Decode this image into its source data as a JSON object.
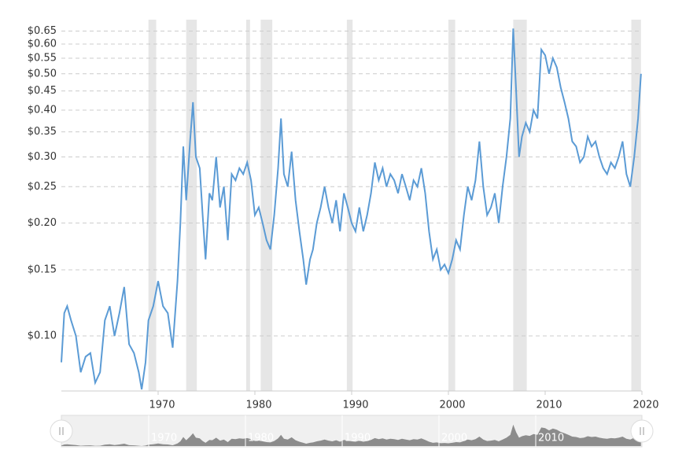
{
  "chart_data": {
    "type": "line",
    "x": [
      1960.0,
      1960.3,
      1960.6,
      1961,
      1961.5,
      1962,
      1962.5,
      1963,
      1963.5,
      1964,
      1964.5,
      1965,
      1965.5,
      1966,
      1966.5,
      1967,
      1967.5,
      1968,
      1968.3,
      1968.7,
      1969,
      1969.5,
      1970,
      1970.5,
      1971,
      1971.5,
      1972,
      1972.3,
      1972.6,
      1972.9,
      1973.3,
      1973.6,
      1973.9,
      1974.3,
      1974.6,
      1974.9,
      1975.3,
      1975.6,
      1976,
      1976.4,
      1976.8,
      1977.2,
      1977.6,
      1978,
      1978.4,
      1978.8,
      1979.2,
      1979.6,
      1980,
      1980.4,
      1980.8,
      1981.2,
      1981.6,
      1982,
      1982.4,
      1982.7,
      1983,
      1983.4,
      1983.8,
      1984.2,
      1984.6,
      1985,
      1985.3,
      1985.7,
      1986,
      1986.4,
      1986.8,
      1987.2,
      1987.6,
      1988,
      1988.4,
      1988.8,
      1989.2,
      1989.6,
      1990,
      1990.4,
      1990.8,
      1991.2,
      1991.6,
      1992,
      1992.4,
      1992.8,
      1993.2,
      1993.6,
      1994,
      1994.4,
      1994.8,
      1995.2,
      1995.6,
      1996,
      1996.4,
      1996.8,
      1997.2,
      1997.6,
      1998,
      1998.4,
      1998.8,
      1999.2,
      1999.6,
      2000,
      2000.4,
      2000.8,
      2001.2,
      2001.6,
      2002,
      2002.4,
      2002.8,
      2003.2,
      2003.6,
      2004,
      2004.4,
      2004.8,
      2005.2,
      2005.6,
      2006,
      2006.4,
      2006.7,
      2007,
      2007.3,
      2007.6,
      2008,
      2008.4,
      2008.8,
      2009.2,
      2009.6,
      2010,
      2010.4,
      2010.8,
      2011.2,
      2011.6,
      2012,
      2012.4,
      2012.8,
      2013.2,
      2013.6,
      2014,
      2014.4,
      2014.8,
      2015.2,
      2015.6,
      2016,
      2016.4,
      2016.8,
      2017.2,
      2017.6,
      2018,
      2018.4,
      2018.8,
      2019.2,
      2019.6,
      2019.9
    ],
    "series": [
      {
        "color": "#5b9bd5",
        "values": [
          0.085,
          0.115,
          0.12,
          0.11,
          0.1,
          0.08,
          0.088,
          0.09,
          0.075,
          0.08,
          0.11,
          0.12,
          0.1,
          0.115,
          0.135,
          0.095,
          0.09,
          0.08,
          0.072,
          0.085,
          0.11,
          0.12,
          0.14,
          0.12,
          0.115,
          0.093,
          0.14,
          0.2,
          0.32,
          0.23,
          0.33,
          0.42,
          0.3,
          0.28,
          0.21,
          0.16,
          0.24,
          0.23,
          0.3,
          0.22,
          0.25,
          0.18,
          0.27,
          0.26,
          0.28,
          0.27,
          0.29,
          0.26,
          0.21,
          0.22,
          0.2,
          0.18,
          0.17,
          0.21,
          0.28,
          0.38,
          0.27,
          0.25,
          0.31,
          0.23,
          0.19,
          0.16,
          0.137,
          0.16,
          0.17,
          0.2,
          0.22,
          0.25,
          0.22,
          0.2,
          0.23,
          0.19,
          0.24,
          0.22,
          0.2,
          0.19,
          0.22,
          0.19,
          0.21,
          0.24,
          0.29,
          0.26,
          0.28,
          0.25,
          0.27,
          0.26,
          0.24,
          0.27,
          0.25,
          0.23,
          0.26,
          0.25,
          0.28,
          0.24,
          0.19,
          0.16,
          0.17,
          0.15,
          0.155,
          0.147,
          0.16,
          0.18,
          0.17,
          0.21,
          0.25,
          0.23,
          0.26,
          0.33,
          0.25,
          0.21,
          0.22,
          0.24,
          0.2,
          0.25,
          0.3,
          0.38,
          0.66,
          0.45,
          0.3,
          0.34,
          0.37,
          0.35,
          0.4,
          0.38,
          0.58,
          0.56,
          0.5,
          0.55,
          0.52,
          0.46,
          0.42,
          0.38,
          0.33,
          0.32,
          0.29,
          0.3,
          0.34,
          0.32,
          0.33,
          0.3,
          0.28,
          0.27,
          0.29,
          0.28,
          0.3,
          0.33,
          0.27,
          0.25,
          0.3,
          0.38,
          0.5
        ]
      }
    ],
    "shaded": [
      [
        1969.0,
        1969.8
      ],
      [
        1972.9,
        1974.0
      ],
      [
        1979.1,
        1979.5
      ],
      [
        1980.6,
        1981.8
      ],
      [
        1989.5,
        1990.1
      ],
      [
        2000.0,
        2000.7
      ],
      [
        2006.7,
        2008.1
      ],
      [
        2018.9,
        2019.9
      ]
    ],
    "xlim": [
      1960,
      2020
    ],
    "xticks": [
      1970,
      1980,
      1990,
      2000,
      2010,
      2020
    ],
    "ylim": [
      0.0713,
      0.697
    ],
    "log_y": true,
    "grid": true,
    "yticks": [
      {
        "value": 0.1,
        "label": "$0.10"
      },
      {
        "value": 0.15,
        "label": "$0.15"
      },
      {
        "value": 0.2,
        "label": "$0.20"
      },
      {
        "value": 0.25,
        "label": "$0.25"
      },
      {
        "value": 0.3,
        "label": "$0.30"
      },
      {
        "value": 0.35,
        "label": "$0.35"
      },
      {
        "value": 0.4,
        "label": "$0.40"
      },
      {
        "value": 0.45,
        "label": "$0.45"
      },
      {
        "value": 0.5,
        "label": "$0.50"
      },
      {
        "value": 0.55,
        "label": "$0.55"
      },
      {
        "value": 0.6,
        "label": "$0.60"
      },
      {
        "value": 0.65,
        "label": "$0.65"
      }
    ]
  }
}
